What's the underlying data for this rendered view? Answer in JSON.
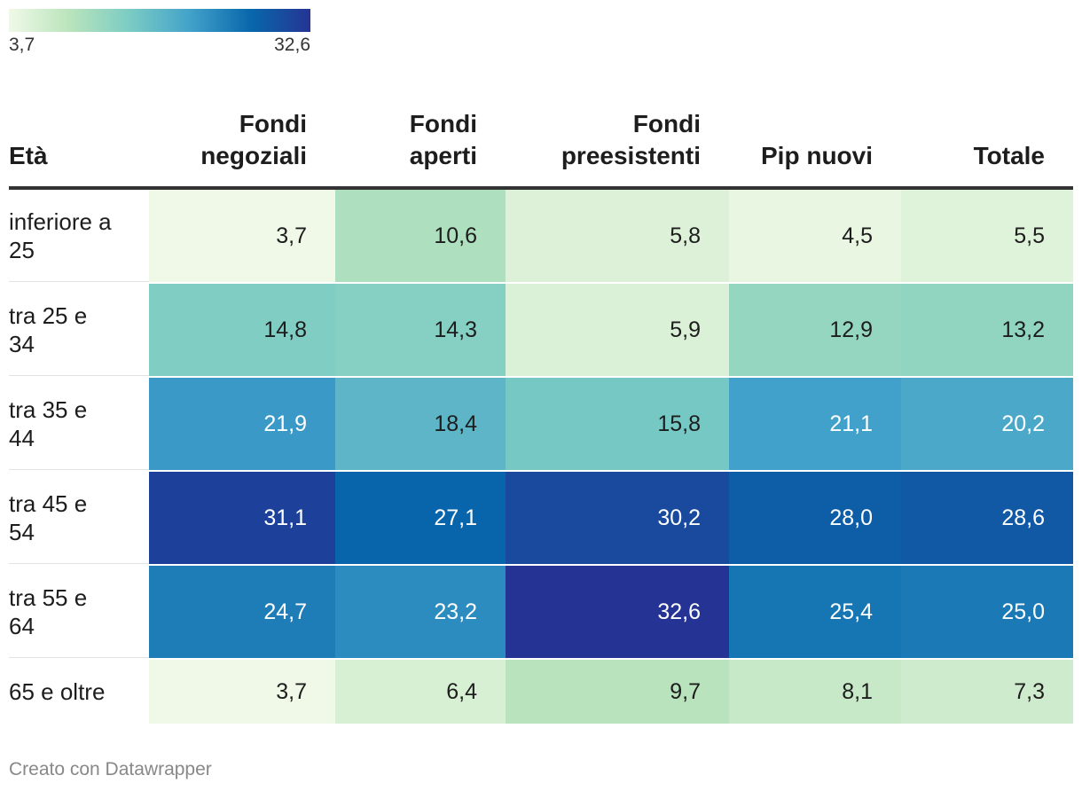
{
  "legend": {
    "min_label": "3,7",
    "max_label": "32,6",
    "min": 3.7,
    "max": 32.6,
    "colors": [
      "#f0f9e8",
      "#bae4bc",
      "#7bccc4",
      "#43a2ca",
      "#0868ac",
      "#253494"
    ]
  },
  "chart_data": {
    "type": "heatmap",
    "title": "",
    "row_header": "Età",
    "columns": [
      "Fondi negoziali",
      "Fondi aperti",
      "Fondi preesistenti",
      "Pip nuovi",
      "Totale"
    ],
    "column_lines": [
      [
        "Fondi",
        "negoziali"
      ],
      [
        "Fondi",
        "aperti"
      ],
      [
        "Fondi",
        "preesistenti"
      ],
      [
        "",
        "Pip nuovi"
      ],
      [
        "",
        "Totale"
      ]
    ],
    "rows": [
      {
        "label_lines": [
          "inferiore a",
          "25"
        ],
        "values": [
          3.7,
          10.6,
          5.8,
          4.5,
          5.5
        ],
        "display": [
          "3,7",
          "10,6",
          "5,8",
          "4,5",
          "5,5"
        ]
      },
      {
        "label_lines": [
          "tra 25 e",
          "34"
        ],
        "values": [
          14.8,
          14.3,
          5.9,
          12.9,
          13.2
        ],
        "display": [
          "14,8",
          "14,3",
          "5,9",
          "12,9",
          "13,2"
        ]
      },
      {
        "label_lines": [
          "tra 35 e",
          "44"
        ],
        "values": [
          21.9,
          18.4,
          15.8,
          21.1,
          20.2
        ],
        "display": [
          "21,9",
          "18,4",
          "15,8",
          "21,1",
          "20,2"
        ]
      },
      {
        "label_lines": [
          "tra 45 e",
          "54"
        ],
        "values": [
          31.1,
          27.1,
          30.2,
          28.0,
          28.6
        ],
        "display": [
          "31,1",
          "27,1",
          "30,2",
          "28,0",
          "28,6"
        ]
      },
      {
        "label_lines": [
          "tra 55 e",
          "64"
        ],
        "values": [
          24.7,
          23.2,
          32.6,
          25.4,
          25.0
        ],
        "display": [
          "24,7",
          "23,2",
          "32,6",
          "25,4",
          "25,0"
        ]
      },
      {
        "label_lines": [
          "65 e oltre"
        ],
        "values": [
          3.7,
          6.4,
          9.7,
          8.1,
          7.3
        ],
        "display": [
          "3,7",
          "6,4",
          "9,7",
          "8,1",
          "7,3"
        ]
      }
    ]
  },
  "footer": {
    "credit": "Creato con Datawrapper"
  }
}
